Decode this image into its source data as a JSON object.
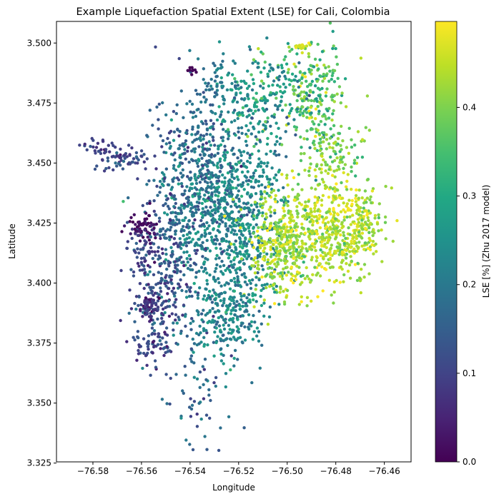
{
  "chart_data": {
    "type": "scatter",
    "title": "Example Liquefaction Spatial Extent (LSE) for Cali, Colombia",
    "xlabel": "Longitude",
    "ylabel": "Latitude",
    "xlim": [
      -76.595,
      -76.449
    ],
    "ylim": [
      3.3255,
      3.509
    ],
    "xticks": [
      -76.58,
      -76.56,
      -76.54,
      -76.52,
      -76.5,
      -76.48,
      -76.46
    ],
    "xtick_labels": [
      "−76.58",
      "−76.56",
      "−76.54",
      "−76.52",
      "−76.50",
      "−76.48",
      "−76.46"
    ],
    "yticks": [
      3.325,
      3.35,
      3.375,
      3.4,
      3.425,
      3.45,
      3.475,
      3.5
    ],
    "ytick_labels": [
      "3.325",
      "3.350",
      "3.375",
      "3.400",
      "3.425",
      "3.450",
      "3.475",
      "3.500"
    ],
    "colorbar": {
      "label": "LSE [%] (Zhu 2017 model)",
      "colormap": "viridis",
      "vmin": 0.0,
      "vmax": 0.497,
      "ticks": [
        0.0,
        0.1,
        0.2,
        0.3,
        0.4
      ],
      "tick_labels": [
        "0.0",
        "0.1",
        "0.2",
        "0.3",
        "0.4"
      ]
    },
    "clusters": [
      {
        "lon": -76.524,
        "lat": 3.428,
        "slon": 0.012,
        "slat": 0.022,
        "n": 900,
        "lse": 0.23,
        "lse_sd": 0.04
      },
      {
        "lon": -76.537,
        "lat": 3.45,
        "slon": 0.009,
        "slat": 0.015,
        "n": 250,
        "lse": 0.17,
        "lse_sd": 0.04
      },
      {
        "lon": -76.548,
        "lat": 3.418,
        "slon": 0.008,
        "slat": 0.018,
        "n": 220,
        "lse": 0.15,
        "lse_sd": 0.04
      },
      {
        "lon": -76.5,
        "lat": 3.418,
        "slon": 0.008,
        "slat": 0.012,
        "n": 480,
        "lse": 0.43,
        "lse_sd": 0.04
      },
      {
        "lon": -76.477,
        "lat": 3.422,
        "slon": 0.008,
        "slat": 0.011,
        "n": 400,
        "lse": 0.44,
        "lse_sd": 0.04
      },
      {
        "lon": -76.49,
        "lat": 3.479,
        "slon": 0.007,
        "slat": 0.012,
        "n": 220,
        "lse": 0.35,
        "lse_sd": 0.06
      },
      {
        "lon": -76.51,
        "lat": 3.478,
        "slon": 0.009,
        "slat": 0.01,
        "n": 180,
        "lse": 0.27,
        "lse_sd": 0.06
      },
      {
        "lon": -76.482,
        "lat": 3.455,
        "slon": 0.006,
        "slat": 0.008,
        "n": 110,
        "lse": 0.4,
        "lse_sd": 0.04
      },
      {
        "lon": -76.526,
        "lat": 3.386,
        "slon": 0.008,
        "slat": 0.01,
        "n": 200,
        "lse": 0.22,
        "lse_sd": 0.04
      },
      {
        "lon": -76.553,
        "lat": 3.392,
        "slon": 0.006,
        "slat": 0.012,
        "n": 150,
        "lse": 0.13,
        "lse_sd": 0.04
      },
      {
        "lon": -76.556,
        "lat": 3.375,
        "slon": 0.004,
        "slat": 0.005,
        "n": 45,
        "lse": 0.1,
        "lse_sd": 0.03
      },
      {
        "lon": -76.536,
        "lat": 3.352,
        "slon": 0.006,
        "slat": 0.011,
        "n": 55,
        "lse": 0.16,
        "lse_sd": 0.04
      },
      {
        "lon": -76.568,
        "lat": 3.453,
        "slon": 0.006,
        "slat": 0.003,
        "n": 70,
        "lse": 0.11,
        "lse_sd": 0.03
      },
      {
        "lon": -76.58,
        "lat": 3.457,
        "slon": 0.003,
        "slat": 0.002,
        "n": 16,
        "lse": 0.1,
        "lse_sd": 0.02
      },
      {
        "lon": -76.559,
        "lat": 3.424,
        "slon": 0.003,
        "slat": 0.003,
        "n": 55,
        "lse": 0.02,
        "lse_sd": 0.015
      },
      {
        "lon": -76.56,
        "lat": 3.413,
        "slon": 0.004,
        "slat": 0.006,
        "n": 40,
        "lse": 0.1,
        "lse_sd": 0.02
      },
      {
        "lon": -76.557,
        "lat": 3.389,
        "slon": 0.003,
        "slat": 0.003,
        "n": 50,
        "lse": 0.07,
        "lse_sd": 0.03
      },
      {
        "lon": -76.539,
        "lat": 3.49,
        "slon": 0.001,
        "slat": 0.0012,
        "n": 9,
        "lse": 0.01,
        "lse_sd": 0.01
      },
      {
        "lon": -76.529,
        "lat": 3.483,
        "slon": 0.004,
        "slat": 0.006,
        "n": 50,
        "lse": 0.2,
        "lse_sd": 0.03
      },
      {
        "lon": -76.494,
        "lat": 3.499,
        "slon": 0.002,
        "slat": 0.001,
        "n": 18,
        "lse": 0.47,
        "lse_sd": 0.02
      },
      {
        "lon": -76.467,
        "lat": 3.425,
        "slon": 0.003,
        "slat": 0.005,
        "n": 50,
        "lse": 0.43,
        "lse_sd": 0.04
      }
    ]
  }
}
